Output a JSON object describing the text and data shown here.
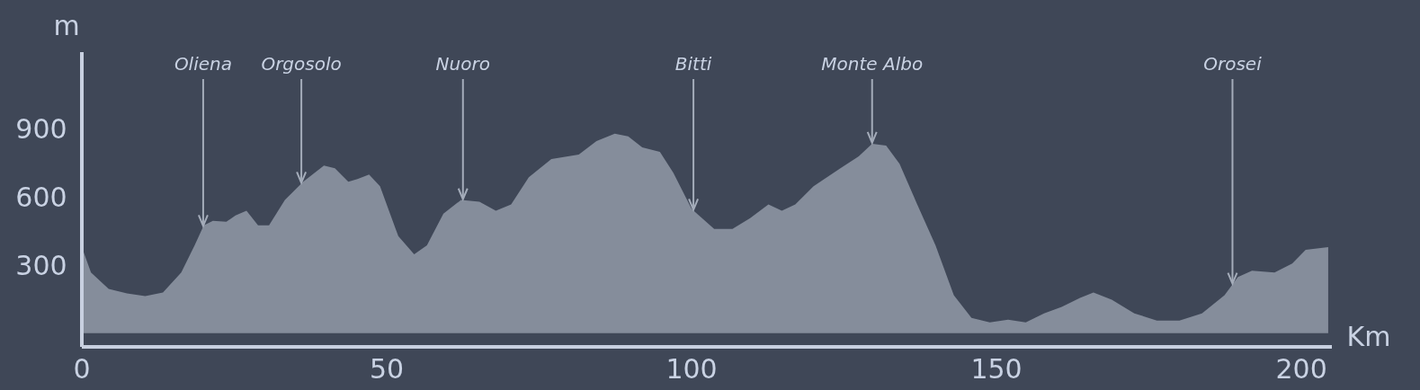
{
  "chart_data": {
    "type": "area",
    "xlabel": "Km",
    "ylabel": "m",
    "color": "#858d9b",
    "x": [
      0,
      1.5,
      4.4,
      7.4,
      10.4,
      13.3,
      16.3,
      18.5,
      20,
      21.5,
      23.7,
      25.2,
      27,
      28.9,
      30.7,
      33.3,
      36.3,
      39.7,
      41.5,
      43.7,
      45.2,
      47.1,
      48.9,
      51.9,
      54.5,
      56.6,
      59.3,
      62.2,
      65.2,
      67.9,
      70.4,
      73.3,
      77,
      81.5,
      84.4,
      87.4,
      89.6,
      91.9,
      94.8,
      97,
      100,
      103.7,
      106.7,
      109.6,
      112.6,
      114.8,
      117,
      120,
      124.4,
      127.4,
      129.6,
      131.9,
      134.1,
      137,
      140,
      143,
      145.9,
      148.9,
      151.9,
      154.8,
      157.8,
      160.7,
      163.7,
      165.9,
      168.9,
      172.6,
      176.3,
      180,
      183.7,
      187.4,
      189.6,
      191.9,
      195.6,
      198.5,
      200.7,
      204.4
    ],
    "values": [
      380,
      268,
      196,
      176,
      164,
      180,
      268,
      388,
      476,
      496,
      492,
      520,
      540,
      476,
      476,
      588,
      668,
      740,
      728,
      668,
      680,
      700,
      648,
      428,
      348,
      388,
      528,
      588,
      580,
      540,
      568,
      688,
      768,
      788,
      848,
      880,
      868,
      820,
      800,
      708,
      548,
      460,
      460,
      508,
      568,
      540,
      568,
      648,
      728,
      780,
      836,
      828,
      748,
      568,
      388,
      168,
      68,
      48,
      60,
      48,
      88,
      116,
      156,
      180,
      148,
      88,
      56,
      56,
      88,
      168,
      248,
      276,
      268,
      308,
      368,
      380
    ],
    "xlim": [
      0,
      205
    ],
    "ylim": [
      -60,
      1240
    ],
    "xticks": [
      0,
      50,
      100,
      150,
      200
    ],
    "yticks": [
      300,
      600,
      900
    ],
    "grid": false,
    "annotations": [
      {
        "text": "Oliena",
        "x": 19.9,
        "y": 470
      },
      {
        "text": "Orgosolo",
        "x": 36,
        "y": 660
      },
      {
        "text": "Nuoro",
        "x": 62.5,
        "y": 587
      },
      {
        "text": "Bitti",
        "x": 100.3,
        "y": 541
      },
      {
        "text": "Monte Albo",
        "x": 129.6,
        "y": 836
      },
      {
        "text": "Orosei",
        "x": 188.7,
        "y": 215
      }
    ]
  }
}
